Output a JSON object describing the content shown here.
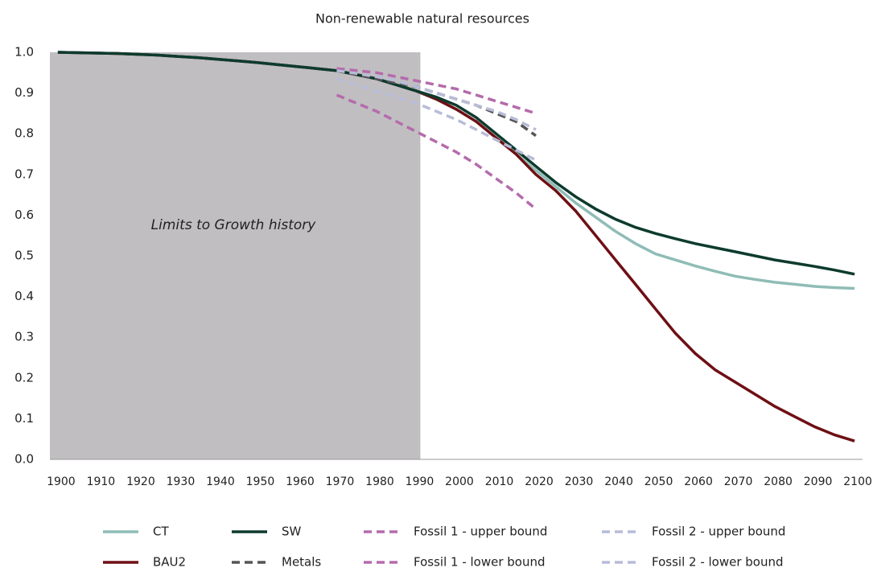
{
  "chart_data": {
    "type": "line",
    "title": "Non-renewable natural resources",
    "annotation": {
      "text": "Limits to Growth history",
      "x_end": 1991,
      "color": "#c0bec1"
    },
    "x": [
      1900,
      1905,
      1910,
      1915,
      1920,
      1925,
      1930,
      1935,
      1940,
      1945,
      1950,
      1955,
      1960,
      1965,
      1970,
      1975,
      1980,
      1985,
      1990,
      1995,
      2000,
      2005,
      2010,
      2015,
      2020,
      2025,
      2030,
      2035,
      2040,
      2045,
      2050,
      2055,
      2060,
      2065,
      2070,
      2075,
      2080,
      2085,
      2090,
      2095,
      2100
    ],
    "xlim": [
      1898,
      2102
    ],
    "xticks": [
      1900,
      1910,
      1920,
      1930,
      1940,
      1950,
      1960,
      1970,
      1980,
      1990,
      2000,
      2010,
      2020,
      2030,
      2040,
      2050,
      2060,
      2070,
      2080,
      2090,
      2100
    ],
    "ylim": [
      0,
      1
    ],
    "yticks": [
      {
        "value": 0,
        "label": "0.0"
      },
      0.1,
      0.2,
      0.3,
      0.4,
      0.5,
      0.6,
      0.7,
      0.8,
      0.9,
      {
        "value": 1,
        "label": "1.0"
      }
    ],
    "series": [
      {
        "name": "CT",
        "color": "#8fbcb6",
        "dashed": false,
        "values": [
          1.0,
          0.999,
          0.998,
          0.997,
          0.995,
          0.993,
          0.99,
          0.987,
          0.983,
          0.979,
          0.975,
          0.97,
          0.965,
          0.96,
          0.955,
          0.945,
          0.935,
          0.92,
          0.905,
          0.885,
          0.86,
          0.83,
          0.79,
          0.75,
          0.71,
          0.67,
          0.63,
          0.595,
          0.56,
          0.53,
          0.505,
          0.49,
          0.475,
          0.462,
          0.45,
          0.442,
          0.435,
          0.43,
          0.425,
          0.422,
          0.42
        ]
      },
      {
        "name": "BAU2",
        "color": "#6e0f14",
        "dashed": false,
        "values": [
          1.0,
          0.999,
          0.998,
          0.997,
          0.995,
          0.993,
          0.99,
          0.987,
          0.983,
          0.979,
          0.975,
          0.97,
          0.965,
          0.96,
          0.955,
          0.945,
          0.935,
          0.92,
          0.905,
          0.885,
          0.86,
          0.83,
          0.79,
          0.75,
          0.7,
          0.66,
          0.61,
          0.55,
          0.49,
          0.43,
          0.37,
          0.31,
          0.26,
          0.22,
          0.19,
          0.16,
          0.13,
          0.105,
          0.08,
          0.06,
          0.045
        ]
      },
      {
        "name": "SW",
        "color": "#0d3b2e",
        "dashed": false,
        "values": [
          1.0,
          0.999,
          0.998,
          0.997,
          0.995,
          0.993,
          0.99,
          0.987,
          0.983,
          0.979,
          0.975,
          0.97,
          0.965,
          0.96,
          0.955,
          0.945,
          0.935,
          0.92,
          0.905,
          0.89,
          0.87,
          0.84,
          0.8,
          0.76,
          0.72,
          0.68,
          0.645,
          0.615,
          0.59,
          0.57,
          0.555,
          0.542,
          0.53,
          0.52,
          0.51,
          0.5,
          0.49,
          0.482,
          0.474,
          0.465,
          0.455
        ]
      },
      {
        "name": "Metals",
        "color": "#555555",
        "dashed": true,
        "values": [
          null,
          null,
          null,
          null,
          null,
          null,
          null,
          null,
          null,
          null,
          null,
          null,
          null,
          null,
          0.955,
          0.945,
          0.935,
          0.925,
          0.915,
          0.9,
          0.885,
          0.87,
          0.85,
          0.83,
          0.795,
          null,
          null,
          null,
          null,
          null,
          null,
          null,
          null,
          null,
          null,
          null,
          null,
          null,
          null,
          null,
          null
        ]
      },
      {
        "name": "Fossil 1 - upper bound",
        "color": "#b56bab",
        "dashed": true,
        "values": [
          null,
          null,
          null,
          null,
          null,
          null,
          null,
          null,
          null,
          null,
          null,
          null,
          null,
          null,
          0.96,
          0.955,
          0.95,
          0.94,
          0.93,
          0.92,
          0.91,
          0.895,
          0.88,
          0.865,
          0.85,
          null,
          null,
          null,
          null,
          null,
          null,
          null,
          null,
          null,
          null,
          null,
          null,
          null,
          null,
          null,
          null
        ]
      },
      {
        "name": "Fossil 1 - lower bound",
        "color": "#b56bab",
        "dashed": true,
        "values": [
          null,
          null,
          null,
          null,
          null,
          null,
          null,
          null,
          null,
          null,
          null,
          null,
          null,
          null,
          0.895,
          0.875,
          0.855,
          0.83,
          0.805,
          0.78,
          0.755,
          0.725,
          0.69,
          0.655,
          0.615,
          null,
          null,
          null,
          null,
          null,
          null,
          null,
          null,
          null,
          null,
          null,
          null,
          null,
          null,
          null,
          null
        ]
      },
      {
        "name": "Fossil 2 - upper bound",
        "color": "#b8bcd8",
        "dashed": true,
        "values": [
          null,
          null,
          null,
          null,
          null,
          null,
          null,
          null,
          null,
          null,
          null,
          null,
          null,
          null,
          0.955,
          0.948,
          0.94,
          0.93,
          0.915,
          0.9,
          0.885,
          0.87,
          0.855,
          0.835,
          0.81,
          null,
          null,
          null,
          null,
          null,
          null,
          null,
          null,
          null,
          null,
          null,
          null,
          null,
          null,
          null,
          null
        ]
      },
      {
        "name": "Fossil 2 - lower bound",
        "color": "#b8bcd8",
        "dashed": true,
        "values": [
          null,
          null,
          null,
          null,
          null,
          null,
          null,
          null,
          null,
          null,
          null,
          null,
          null,
          null,
          0.935,
          0.92,
          0.905,
          0.89,
          0.875,
          0.855,
          0.835,
          0.81,
          0.785,
          0.76,
          0.735,
          null,
          null,
          null,
          null,
          null,
          null,
          null,
          null,
          null,
          null,
          null,
          null,
          null,
          null,
          null,
          null
        ]
      }
    ]
  }
}
